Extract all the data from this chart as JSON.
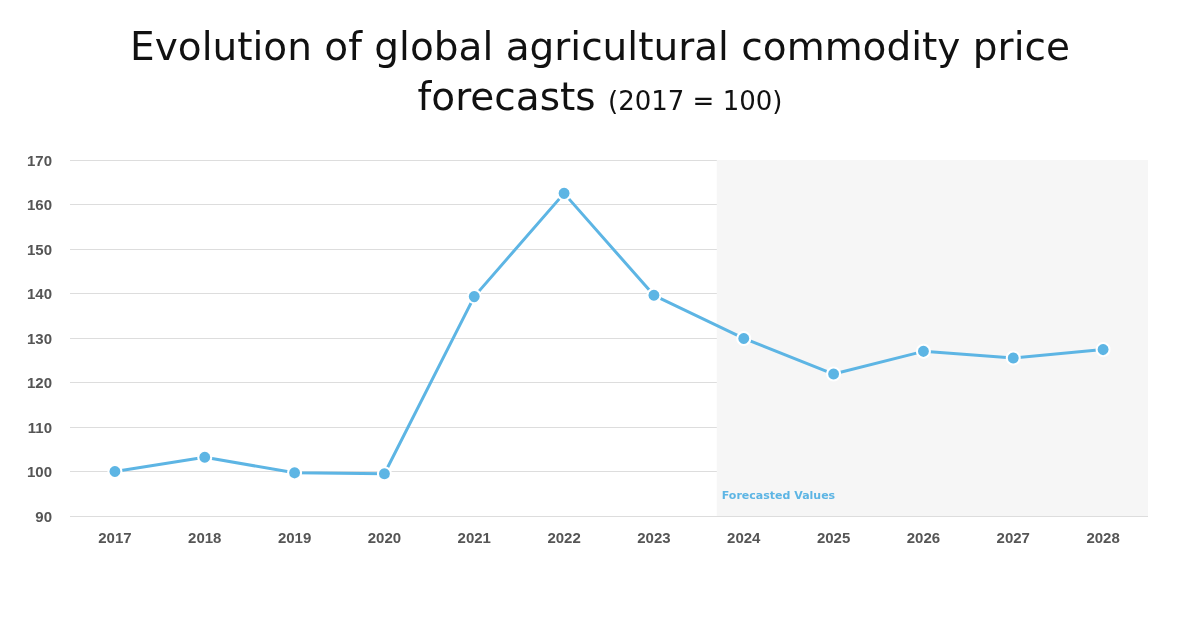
{
  "chart_data": {
    "type": "line",
    "title": "Evolution of global agricultural commodity price forecasts",
    "subtitle": "(2017 = 100)",
    "x": [
      2017,
      2018,
      2019,
      2020,
      2021,
      2022,
      2023,
      2024,
      2025,
      2026,
      2027,
      2028
    ],
    "series": [
      {
        "color": "#5db5e4",
        "values": [
          100,
          103.2,
          99.7,
          99.5,
          139.3,
          162.5,
          139.6,
          129.9,
          121.9,
          127.0,
          125.5,
          127.4
        ]
      }
    ],
    "xlim": [
      2016.5,
      2028.5
    ],
    "xticks": [
      2017,
      2018,
      2019,
      2020,
      2021,
      2022,
      2023,
      2024,
      2025,
      2026,
      2027,
      2028
    ],
    "ylim": [
      90,
      170
    ],
    "yticks": [
      90,
      100,
      110,
      120,
      130,
      140,
      150,
      160,
      170
    ],
    "bands": [
      {
        "axis": "x",
        "from": 2023.7,
        "to": 2028.5,
        "label": "Forecasted Values",
        "color": "#f6f6f6"
      }
    ],
    "grid": "y",
    "marker": "circle",
    "line_style": "solid"
  }
}
